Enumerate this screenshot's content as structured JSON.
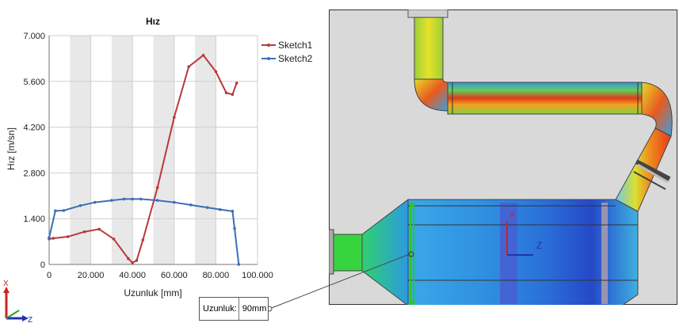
{
  "chart_data": {
    "type": "line",
    "title": "Hız",
    "xlabel": "Uzunluk [mm]",
    "ylabel": "Hız [m/sn]",
    "xlim": [
      0,
      100
    ],
    "ylim": [
      0,
      7
    ],
    "xticks": [
      "0",
      "20.000",
      "40.000",
      "60.000",
      "80.000",
      "100.000"
    ],
    "yticks": [
      "0",
      "1.400",
      "2.800",
      "4.200",
      "5.600",
      "7.000"
    ],
    "legend_position": "right",
    "shaded_bands": [
      [
        10,
        20
      ],
      [
        30,
        40
      ],
      [
        50,
        60
      ],
      [
        70,
        80
      ]
    ],
    "series": [
      {
        "name": "Sketch1",
        "color": "#b83a3a",
        "x": [
          0,
          2,
          9,
          17,
          24,
          31,
          38,
          40,
          42,
          45,
          52,
          60,
          67,
          74,
          80,
          85,
          88,
          90
        ],
        "y": [
          0.78,
          0.8,
          0.85,
          1.0,
          1.08,
          0.78,
          0.18,
          0.05,
          0.12,
          0.75,
          2.35,
          4.5,
          6.05,
          6.4,
          5.9,
          5.25,
          5.2,
          5.55
        ]
      },
      {
        "name": "Sketch2",
        "color": "#3a6fb8",
        "x": [
          0,
          3,
          7,
          15,
          22,
          30,
          36,
          40,
          44,
          52,
          60,
          68,
          76,
          82,
          88,
          89,
          91
        ],
        "y": [
          0.82,
          1.64,
          1.65,
          1.8,
          1.9,
          1.96,
          2.0,
          2.0,
          2.0,
          1.96,
          1.9,
          1.82,
          1.74,
          1.68,
          1.63,
          1.1,
          0
        ]
      }
    ]
  },
  "triad": {
    "x_label": "X",
    "z_label": "Z"
  },
  "model_triad": {
    "z_label": "Z",
    "x_label": "X"
  },
  "probe": {
    "label": "Uzunluk:",
    "value": "90mm"
  },
  "colors": {
    "sketch1": "#b83a3a",
    "sketch2": "#3a6fb8",
    "viewport_bg": "#d9d9d9"
  }
}
